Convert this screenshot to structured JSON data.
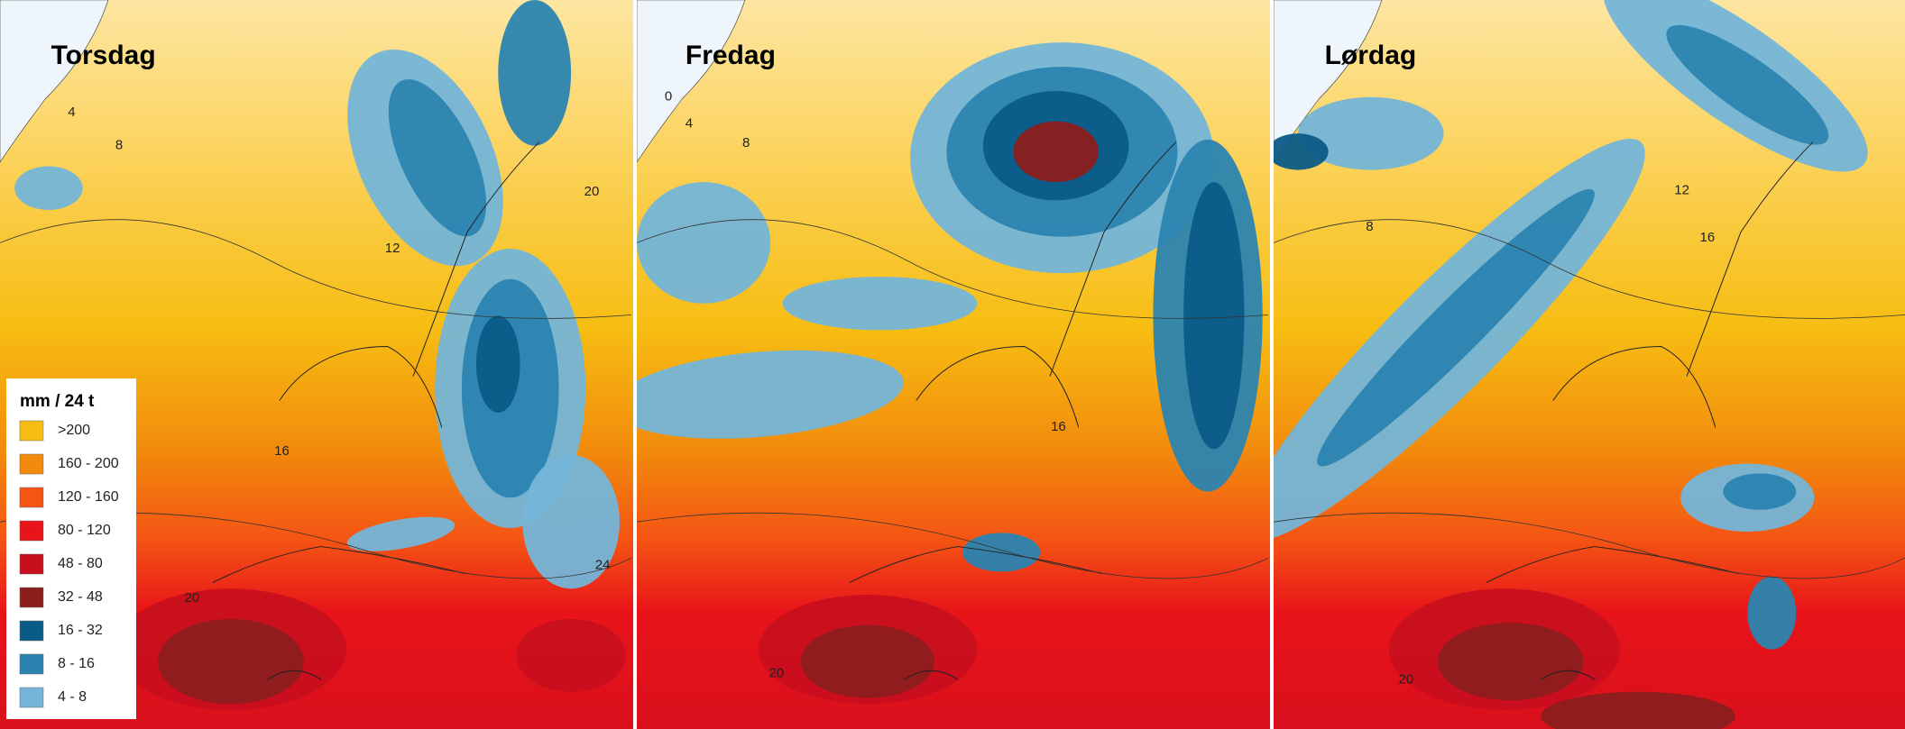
{
  "panels": [
    {
      "title": "Torsdag",
      "contour_labels": [
        "4",
        "8",
        "12",
        "20",
        "16",
        "20",
        "24"
      ]
    },
    {
      "title": "Fredag",
      "contour_labels": [
        "0",
        "4",
        "8",
        "16",
        "20"
      ]
    },
    {
      "title": "Lørdag",
      "contour_labels": [
        "8",
        "12",
        "16",
        "20"
      ]
    }
  ],
  "legend": {
    "title": "mm / 24 t",
    "items": [
      {
        "label": ">200",
        "color": "#f7bd12"
      },
      {
        "label": "160 - 200",
        "color": "#f28a0c"
      },
      {
        "label": "120 - 160",
        "color": "#f45414"
      },
      {
        "label": "80 - 120",
        "color": "#e8141a"
      },
      {
        "label": "48 - 80",
        "color": "#c80f1e"
      },
      {
        "label": "32 - 48",
        "color": "#8c1d1d"
      },
      {
        "label": "16 - 32",
        "color": "#0b5b87"
      },
      {
        "label": "8 - 16",
        "color": "#2b84b0"
      },
      {
        "label": "4 - 8",
        "color": "#74b5d8"
      }
    ]
  }
}
